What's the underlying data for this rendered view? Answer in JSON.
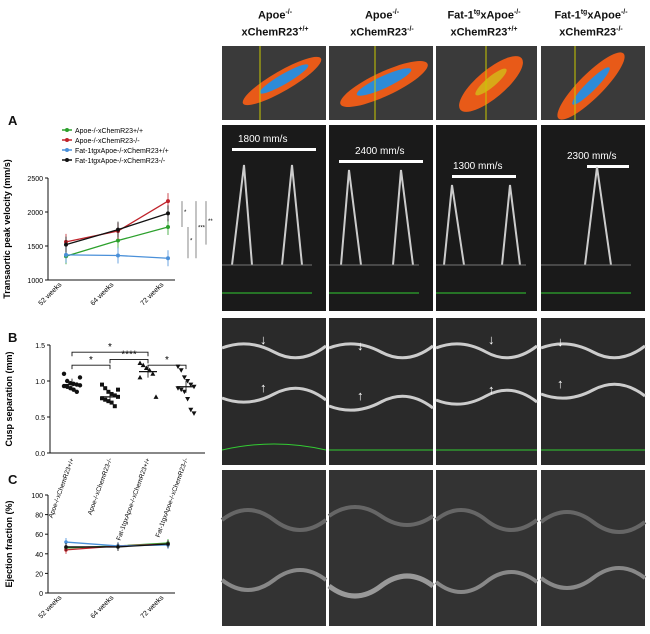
{
  "panels": {
    "A": "A",
    "B": "B",
    "C": "C"
  },
  "columns": [
    {
      "line1": "Apoe",
      "sup1": "-/-",
      "line2": "xChemR23",
      "sup2": "+/+",
      "velocity": "1800 mm/s"
    },
    {
      "line1": "Apoe",
      "sup1": "-/-",
      "line2": "xChemR23",
      "sup2": "-/-",
      "velocity": "2400 mm/s"
    },
    {
      "line1": "Fat-1",
      "sup1": "tg",
      "line1b": "xApoe",
      "sup1b": "-/-",
      "line2": "xChemR23",
      "sup2": "+/+",
      "velocity": "1300 mm/s"
    },
    {
      "line1": "Fat-1",
      "sup1": "tg",
      "line1b": "xApoe",
      "sup1b": "-/-",
      "line2": "xChemR23",
      "sup2": "-/-",
      "velocity": "2300 mm/s"
    }
  ],
  "colors": {
    "green": "#2ca02c",
    "red": "#c0232b",
    "blue": "#4a90d9",
    "black": "#111111"
  },
  "chart_data": [
    {
      "type": "line",
      "panel": "A",
      "ylabel": "Transaortic peak velocity (mm/s)",
      "categories": [
        "52 weeks",
        "64 weeks",
        "72 weeks"
      ],
      "ylim": [
        1000,
        2500
      ],
      "yticks": [
        "1000",
        "1500",
        "2000",
        "2500"
      ],
      "series": [
        {
          "name": "Apoe-/-xChemR23+/+",
          "color": "#2ca02c",
          "values": [
            1350,
            1580,
            1780
          ]
        },
        {
          "name": "Apoe-/-xChemR23-/-",
          "color": "#c0232b",
          "values": [
            1560,
            1720,
            2160
          ]
        },
        {
          "name": "Fat-1tgxApoe-/-xChemR23+/+",
          "color": "#4a90d9",
          "values": [
            1370,
            1360,
            1320
          ]
        },
        {
          "name": "Fat-1tgxApoe-/-xChemR23-/-",
          "color": "#111111",
          "values": [
            1520,
            1740,
            1980
          ]
        }
      ],
      "sig": [
        "*",
        "*",
        "***",
        "**"
      ]
    },
    {
      "type": "scatter",
      "panel": "B",
      "ylabel": "Cusp separation (mm)",
      "ylim": [
        0,
        1.5
      ],
      "yticks": [
        "0.0",
        "0.5",
        "1.0",
        "1.5"
      ],
      "categories": [
        "Apoe-/-xChemR23+/+",
        "Apoe-/-xChemR23-/-",
        "Fat-1tgxApoe-/-xChemR23+/+",
        "Fat-1tgxApoe-/-xChemR23-/-"
      ],
      "means": [
        0.95,
        0.78,
        1.13,
        0.92
      ],
      "points": [
        [
          1.1,
          1.0,
          0.97,
          0.96,
          0.95,
          0.94,
          0.93,
          0.92,
          0.9,
          0.88,
          0.85,
          1.05
        ],
        [
          0.95,
          0.9,
          0.85,
          0.82,
          0.8,
          0.78,
          0.76,
          0.74,
          0.72,
          0.7,
          0.65,
          0.88
        ],
        [
          1.25,
          1.22,
          1.18,
          1.15,
          1.1,
          0.78,
          1.05
        ],
        [
          1.2,
          1.15,
          1.05,
          1.0,
          0.95,
          0.92,
          0.9,
          0.88,
          0.85,
          0.75,
          0.6,
          0.55
        ]
      ],
      "sig": [
        "*",
        "*",
        "****",
        "*"
      ]
    },
    {
      "type": "line",
      "panel": "C",
      "ylabel": "Ejection fraction (%)",
      "categories": [
        "52 weeks",
        "64 weeks",
        "72 weeks"
      ],
      "ylim": [
        0,
        100
      ],
      "yticks": [
        "0",
        "20",
        "40",
        "60",
        "80",
        "100"
      ],
      "series": [
        {
          "name": "Apoe-/-xChemR23+/+",
          "color": "#2ca02c",
          "values": [
            46,
            48,
            51
          ]
        },
        {
          "name": "Apoe-/-xChemR23-/-",
          "color": "#c0232b",
          "values": [
            44,
            48,
            50
          ]
        },
        {
          "name": "Fat-1tgxApoe-/-xChemR23+/+",
          "color": "#4a90d9",
          "values": [
            52,
            48,
            49
          ]
        },
        {
          "name": "Fat-1tgxApoe-/-xChemR23-/-",
          "color": "#111111",
          "values": [
            47,
            47,
            50
          ]
        }
      ]
    }
  ]
}
